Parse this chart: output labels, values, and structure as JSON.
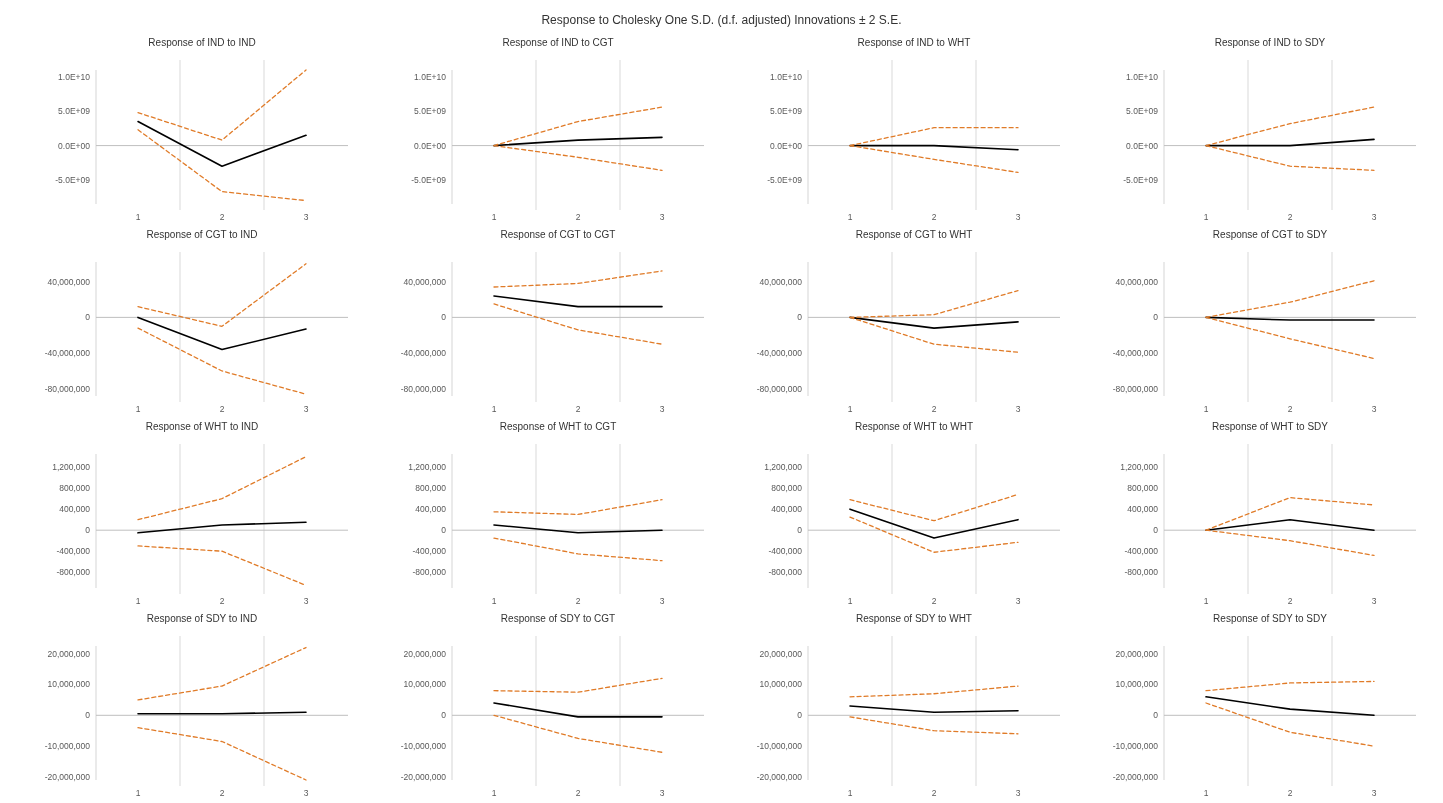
{
  "chart_data": [
    {
      "type": "other",
      "title": "Response to Cholesky One S.D. (d.f. adjusted) Innovations ± 2 S.E."
    },
    {
      "type": "line",
      "title": "Response of IND to IND",
      "categories": [
        "1",
        "2",
        "3"
      ],
      "ylim": [
        -8500000000.0,
        11000000000.0
      ],
      "yticks": [
        {
          "value": -5000000000.0,
          "label": "-5.0E+09"
        },
        {
          "value": 0,
          "label": "0.0E+00"
        },
        {
          "value": 5000000000.0,
          "label": "5.0E+09"
        },
        {
          "value": 10000000000.0,
          "label": "1.0E+10"
        }
      ],
      "grid": "x",
      "series": [
        {
          "color": "#000000",
          "line_style": "solid",
          "values": [
            3500000000.0,
            -3000000000.0,
            1500000000.0
          ]
        },
        {
          "color": "#e07b28",
          "line_style": "dashed",
          "values": [
            4800000000.0,
            800000000.0,
            11000000000.0
          ]
        },
        {
          "color": "#e07b28",
          "line_style": "dashed",
          "values": [
            2300000000.0,
            -6700000000.0,
            -8000000000.0
          ]
        }
      ]
    },
    {
      "type": "line",
      "title": "Response of IND to CGT",
      "categories": [
        "1",
        "2",
        "3"
      ],
      "ylim": [
        -8500000000.0,
        11000000000.0
      ],
      "yticks": [
        {
          "value": -5000000000.0,
          "label": "-5.0E+09"
        },
        {
          "value": 0,
          "label": "0.0E+00"
        },
        {
          "value": 5000000000.0,
          "label": "5.0E+09"
        },
        {
          "value": 10000000000.0,
          "label": "1.0E+10"
        }
      ],
      "grid": "x",
      "series": [
        {
          "color": "#000000",
          "line_style": "solid",
          "values": [
            0,
            800000000.0,
            1200000000.0
          ]
        },
        {
          "color": "#e07b28",
          "line_style": "dashed",
          "values": [
            0,
            3500000000.0,
            5600000000.0
          ]
        },
        {
          "color": "#e07b28",
          "line_style": "dashed",
          "values": [
            0,
            -1700000000.0,
            -3600000000.0
          ]
        }
      ]
    },
    {
      "type": "line",
      "title": "Response of IND to WHT",
      "categories": [
        "1",
        "2",
        "3"
      ],
      "ylim": [
        -8500000000.0,
        11000000000.0
      ],
      "yticks": [
        {
          "value": -5000000000.0,
          "label": "-5.0E+09"
        },
        {
          "value": 0,
          "label": "0.0E+00"
        },
        {
          "value": 5000000000.0,
          "label": "5.0E+09"
        },
        {
          "value": 10000000000.0,
          "label": "1.0E+10"
        }
      ],
      "grid": "x",
      "series": [
        {
          "color": "#000000",
          "line_style": "solid",
          "values": [
            0,
            0,
            -600000000.0
          ]
        },
        {
          "color": "#e07b28",
          "line_style": "dashed",
          "values": [
            0,
            2600000000.0,
            2600000000.0
          ]
        },
        {
          "color": "#e07b28",
          "line_style": "dashed",
          "values": [
            0,
            -2000000000.0,
            -3900000000.0
          ]
        }
      ]
    },
    {
      "type": "line",
      "title": "Response of IND to SDY",
      "categories": [
        "1",
        "2",
        "3"
      ],
      "ylim": [
        -8500000000.0,
        11000000000.0
      ],
      "yticks": [
        {
          "value": -5000000000.0,
          "label": "-5.0E+09"
        },
        {
          "value": 0,
          "label": "0.0E+00"
        },
        {
          "value": 5000000000.0,
          "label": "5.0E+09"
        },
        {
          "value": 10000000000.0,
          "label": "1.0E+10"
        }
      ],
      "grid": "x",
      "series": [
        {
          "color": "#000000",
          "line_style": "solid",
          "values": [
            0,
            0,
            900000000.0
          ]
        },
        {
          "color": "#e07b28",
          "line_style": "dashed",
          "values": [
            0,
            3200000000.0,
            5600000000.0
          ]
        },
        {
          "color": "#e07b28",
          "line_style": "dashed",
          "values": [
            0,
            -3000000000.0,
            -3600000000.0
          ]
        }
      ]
    },
    {
      "type": "line",
      "title": "Response of CGT to IND",
      "categories": [
        "1",
        "2",
        "3"
      ],
      "ylim": [
        -88000000.0,
        62000000.0
      ],
      "yticks": [
        {
          "value": -80000000.0,
          "label": "-80,000,000"
        },
        {
          "value": -40000000.0,
          "label": "-40,000,000"
        },
        {
          "value": 0,
          "label": "0"
        },
        {
          "value": 40000000.0,
          "label": "40,000,000"
        }
      ],
      "grid": "x",
      "series": [
        {
          "color": "#000000",
          "line_style": "solid",
          "values": [
            0,
            -36000000.0,
            -13000000.0
          ]
        },
        {
          "color": "#e07b28",
          "line_style": "dashed",
          "values": [
            12000000.0,
            -10000000.0,
            60000000.0
          ]
        },
        {
          "color": "#e07b28",
          "line_style": "dashed",
          "values": [
            -12000000.0,
            -60000000.0,
            -86000000.0
          ]
        }
      ]
    },
    {
      "type": "line",
      "title": "Response of CGT to CGT",
      "categories": [
        "1",
        "2",
        "3"
      ],
      "ylim": [
        -88000000.0,
        62000000.0
      ],
      "yticks": [
        {
          "value": -80000000.0,
          "label": "-80,000,000"
        },
        {
          "value": -40000000.0,
          "label": "-40,000,000"
        },
        {
          "value": 0,
          "label": "0"
        },
        {
          "value": 40000000.0,
          "label": "40,000,000"
        }
      ],
      "grid": "x",
      "series": [
        {
          "color": "#000000",
          "line_style": "solid",
          "values": [
            24000000.0,
            12000000.0,
            12000000.0
          ]
        },
        {
          "color": "#e07b28",
          "line_style": "dashed",
          "values": [
            34000000.0,
            38000000.0,
            52000000.0
          ]
        },
        {
          "color": "#e07b28",
          "line_style": "dashed",
          "values": [
            15000000.0,
            -14000000.0,
            -30000000.0
          ]
        }
      ]
    },
    {
      "type": "line",
      "title": "Response of CGT to WHT",
      "categories": [
        "1",
        "2",
        "3"
      ],
      "ylim": [
        -88000000.0,
        62000000.0
      ],
      "yticks": [
        {
          "value": -80000000.0,
          "label": "-80,000,000"
        },
        {
          "value": -40000000.0,
          "label": "-40,000,000"
        },
        {
          "value": 0,
          "label": "0"
        },
        {
          "value": 40000000.0,
          "label": "40,000,000"
        }
      ],
      "grid": "x",
      "series": [
        {
          "color": "#000000",
          "line_style": "solid",
          "values": [
            0,
            -12000000.0,
            -5000000.0
          ]
        },
        {
          "color": "#e07b28",
          "line_style": "dashed",
          "values": [
            0,
            3000000.0,
            30000000.0
          ]
        },
        {
          "color": "#e07b28",
          "line_style": "dashed",
          "values": [
            0,
            -30000000.0,
            -39000000.0
          ]
        }
      ]
    },
    {
      "type": "line",
      "title": "Response of CGT to SDY",
      "categories": [
        "1",
        "2",
        "3"
      ],
      "ylim": [
        -88000000.0,
        62000000.0
      ],
      "yticks": [
        {
          "value": -80000000.0,
          "label": "-80,000,000"
        },
        {
          "value": -40000000.0,
          "label": "-40,000,000"
        },
        {
          "value": 0,
          "label": "0"
        },
        {
          "value": 40000000.0,
          "label": "40,000,000"
        }
      ],
      "grid": "x",
      "series": [
        {
          "color": "#000000",
          "line_style": "solid",
          "values": [
            0,
            -3000000.0,
            -3000000.0
          ]
        },
        {
          "color": "#e07b28",
          "line_style": "dashed",
          "values": [
            0,
            17000000.0,
            41000000.0
          ]
        },
        {
          "color": "#e07b28",
          "line_style": "dashed",
          "values": [
            0,
            -24000000.0,
            -46000000.0
          ]
        }
      ]
    },
    {
      "type": "line",
      "title": "Response of WHT to IND",
      "categories": [
        "1",
        "2",
        "3"
      ],
      "ylim": [
        -1100000.0,
        1450000.0
      ],
      "yticks": [
        {
          "value": -800000.0,
          "label": "-800,000"
        },
        {
          "value": -400000.0,
          "label": "-400,000"
        },
        {
          "value": 0,
          "label": "0"
        },
        {
          "value": 400000.0,
          "label": "400,000"
        },
        {
          "value": 800000.0,
          "label": "800,000"
        },
        {
          "value": 1200000.0,
          "label": "1,200,000"
        }
      ],
      "grid": "x",
      "series": [
        {
          "color": "#000000",
          "line_style": "solid",
          "values": [
            -50000.0,
            100000.0,
            150000.0
          ]
        },
        {
          "color": "#e07b28",
          "line_style": "dashed",
          "values": [
            200000.0,
            600000.0,
            1400000.0
          ]
        },
        {
          "color": "#e07b28",
          "line_style": "dashed",
          "values": [
            -300000.0,
            -400000.0,
            -1050000.0
          ]
        }
      ]
    },
    {
      "type": "line",
      "title": "Response of WHT to CGT",
      "categories": [
        "1",
        "2",
        "3"
      ],
      "ylim": [
        -1100000.0,
        1450000.0
      ],
      "yticks": [
        {
          "value": -800000.0,
          "label": "-800,000"
        },
        {
          "value": -400000.0,
          "label": "-400,000"
        },
        {
          "value": 0,
          "label": "0"
        },
        {
          "value": 400000.0,
          "label": "400,000"
        },
        {
          "value": 800000.0,
          "label": "800,000"
        },
        {
          "value": 1200000.0,
          "label": "1,200,000"
        }
      ],
      "grid": "x",
      "series": [
        {
          "color": "#000000",
          "line_style": "solid",
          "values": [
            100000.0,
            -50000.0,
            0
          ]
        },
        {
          "color": "#e07b28",
          "line_style": "dashed",
          "values": [
            350000.0,
            300000.0,
            580000.0
          ]
        },
        {
          "color": "#e07b28",
          "line_style": "dashed",
          "values": [
            -150000.0,
            -450000.0,
            -580000.0
          ]
        }
      ]
    },
    {
      "type": "line",
      "title": "Response of WHT to WHT",
      "categories": [
        "1",
        "2",
        "3"
      ],
      "ylim": [
        -1100000.0,
        1450000.0
      ],
      "yticks": [
        {
          "value": -800000.0,
          "label": "-800,000"
        },
        {
          "value": -400000.0,
          "label": "-400,000"
        },
        {
          "value": 0,
          "label": "0"
        },
        {
          "value": 400000.0,
          "label": "400,000"
        },
        {
          "value": 800000.0,
          "label": "800,000"
        },
        {
          "value": 1200000.0,
          "label": "1,200,000"
        }
      ],
      "grid": "x",
      "series": [
        {
          "color": "#000000",
          "line_style": "solid",
          "values": [
            400000.0,
            -150000.0,
            200000.0
          ]
        },
        {
          "color": "#e07b28",
          "line_style": "dashed",
          "values": [
            580000.0,
            180000.0,
            680000.0
          ]
        },
        {
          "color": "#e07b28",
          "line_style": "dashed",
          "values": [
            250000.0,
            -420000.0,
            -230000.0
          ]
        }
      ]
    },
    {
      "type": "line",
      "title": "Response of WHT to SDY",
      "categories": [
        "1",
        "2",
        "3"
      ],
      "ylim": [
        -1100000.0,
        1450000.0
      ],
      "yticks": [
        {
          "value": -800000.0,
          "label": "-800,000"
        },
        {
          "value": -400000.0,
          "label": "-400,000"
        },
        {
          "value": 0,
          "label": "0"
        },
        {
          "value": 400000.0,
          "label": "400,000"
        },
        {
          "value": 800000.0,
          "label": "800,000"
        },
        {
          "value": 1200000.0,
          "label": "1,200,000"
        }
      ],
      "grid": "x",
      "series": [
        {
          "color": "#000000",
          "line_style": "solid",
          "values": [
            0,
            200000.0,
            0
          ]
        },
        {
          "color": "#e07b28",
          "line_style": "dashed",
          "values": [
            0,
            620000.0,
            480000.0
          ]
        },
        {
          "color": "#e07b28",
          "line_style": "dashed",
          "values": [
            0,
            -200000.0,
            -480000.0
          ]
        }
      ]
    },
    {
      "type": "line",
      "title": "Response of SDY to IND",
      "categories": [
        "1",
        "2",
        "3"
      ],
      "ylim": [
        -21000000.0,
        22500000.0
      ],
      "yticks": [
        {
          "value": -20000000.0,
          "label": "-20,000,000"
        },
        {
          "value": -10000000.0,
          "label": "-10,000,000"
        },
        {
          "value": 0,
          "label": "0"
        },
        {
          "value": 10000000.0,
          "label": "10,000,000"
        },
        {
          "value": 20000000.0,
          "label": "20,000,000"
        }
      ],
      "grid": "x",
      "series": [
        {
          "color": "#000000",
          "line_style": "solid",
          "values": [
            500000.0,
            500000.0,
            1000000.0
          ]
        },
        {
          "color": "#e07b28",
          "line_style": "dashed",
          "values": [
            5000000.0,
            9500000.0,
            22000000.0
          ]
        },
        {
          "color": "#e07b28",
          "line_style": "dashed",
          "values": [
            -4000000.0,
            -8500000.0,
            -21000000.0
          ]
        }
      ]
    },
    {
      "type": "line",
      "title": "Response of SDY to CGT",
      "categories": [
        "1",
        "2",
        "3"
      ],
      "ylim": [
        -21000000.0,
        22500000.0
      ],
      "yticks": [
        {
          "value": -20000000.0,
          "label": "-20,000,000"
        },
        {
          "value": -10000000.0,
          "label": "-10,000,000"
        },
        {
          "value": 0,
          "label": "0"
        },
        {
          "value": 10000000.0,
          "label": "10,000,000"
        },
        {
          "value": 20000000.0,
          "label": "20,000,000"
        }
      ],
      "grid": "x",
      "series": [
        {
          "color": "#000000",
          "line_style": "solid",
          "values": [
            4000000.0,
            -500000.0,
            -500000.0
          ]
        },
        {
          "color": "#e07b28",
          "line_style": "dashed",
          "values": [
            8000000.0,
            7500000.0,
            12000000.0
          ]
        },
        {
          "color": "#e07b28",
          "line_style": "dashed",
          "values": [
            0,
            -7500000.0,
            -12000000.0
          ]
        }
      ]
    },
    {
      "type": "line",
      "title": "Response of SDY to WHT",
      "categories": [
        "1",
        "2",
        "3"
      ],
      "ylim": [
        -21000000.0,
        22500000.0
      ],
      "yticks": [
        {
          "value": -20000000.0,
          "label": "-20,000,000"
        },
        {
          "value": -10000000.0,
          "label": "-10,000,000"
        },
        {
          "value": 0,
          "label": "0"
        },
        {
          "value": 10000000.0,
          "label": "10,000,000"
        },
        {
          "value": 20000000.0,
          "label": "20,000,000"
        }
      ],
      "grid": "x",
      "series": [
        {
          "color": "#000000",
          "line_style": "solid",
          "values": [
            3000000.0,
            1000000.0,
            1500000.0
          ]
        },
        {
          "color": "#e07b28",
          "line_style": "dashed",
          "values": [
            6000000.0,
            7000000.0,
            9500000.0
          ]
        },
        {
          "color": "#e07b28",
          "line_style": "dashed",
          "values": [
            -500000.0,
            -5000000.0,
            -6000000.0
          ]
        }
      ]
    },
    {
      "type": "line",
      "title": "Response of SDY to SDY",
      "categories": [
        "1",
        "2",
        "3"
      ],
      "ylim": [
        -21000000.0,
        22500000.0
      ],
      "yticks": [
        {
          "value": -20000000.0,
          "label": "-20,000,000"
        },
        {
          "value": -10000000.0,
          "label": "-10,000,000"
        },
        {
          "value": 0,
          "label": "0"
        },
        {
          "value": 10000000.0,
          "label": "10,000,000"
        },
        {
          "value": 20000000.0,
          "label": "20,000,000"
        }
      ],
      "grid": "x",
      "series": [
        {
          "color": "#000000",
          "line_style": "solid",
          "values": [
            6000000.0,
            2000000.0,
            0
          ]
        },
        {
          "color": "#e07b28",
          "line_style": "dashed",
          "values": [
            8000000.0,
            10500000.0,
            11000000.0
          ]
        },
        {
          "color": "#e07b28",
          "line_style": "dashed",
          "values": [
            4000000.0,
            -5500000.0,
            -10000000.0
          ]
        }
      ]
    }
  ]
}
